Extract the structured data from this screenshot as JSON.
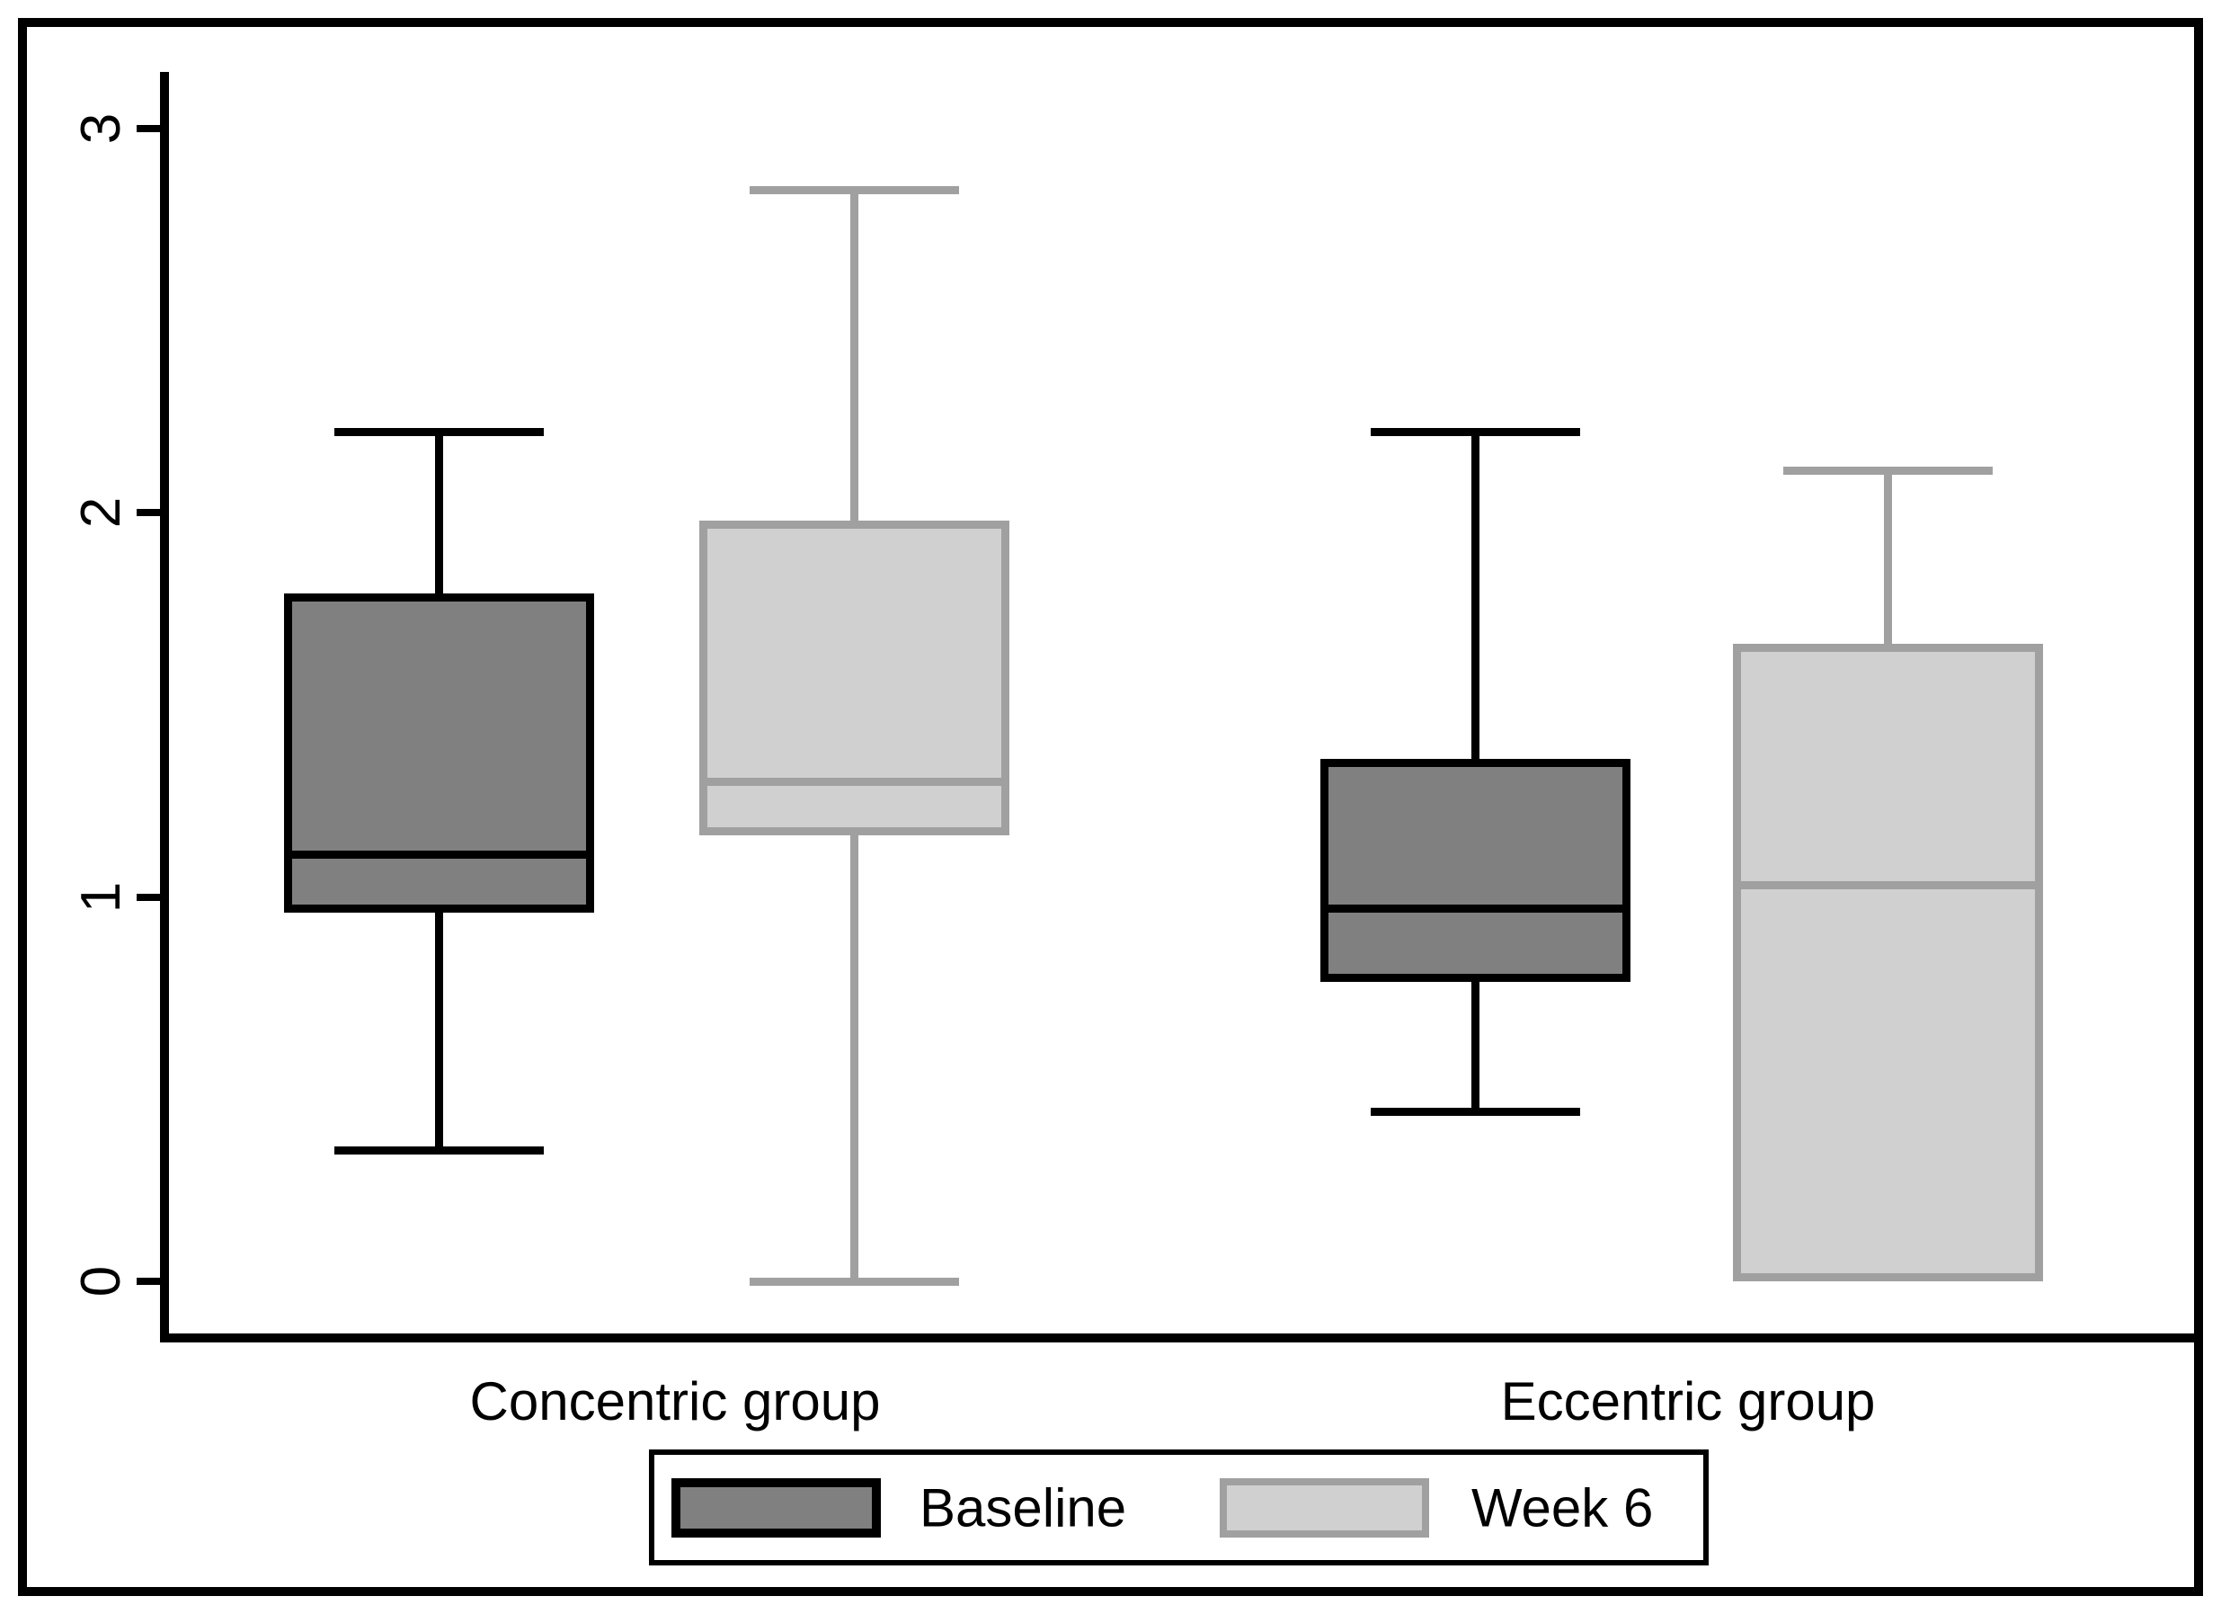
{
  "figure": {
    "background": "#ffffff",
    "outer_border_color": "#000000"
  },
  "chart_data": {
    "type": "box",
    "orientation": "vertical",
    "title": "",
    "xlabel": "",
    "ylabel": "",
    "grid": false,
    "y_axis": {
      "ticks": [
        0,
        1,
        2,
        3
      ],
      "range": [
        -0.15,
        3.15
      ]
    },
    "categories": [
      "Concentric group",
      "Eccentric group"
    ],
    "series": [
      {
        "name": "Baseline",
        "fill": "#808080",
        "stroke": "#000000",
        "boxes": [
          {
            "category": "Concentric group",
            "whisker_low": 0.34,
            "q1": 0.96,
            "median": 1.11,
            "q3": 1.79,
            "whisker_high": 2.21
          },
          {
            "category": "Eccentric group",
            "whisker_low": 0.44,
            "q1": 0.78,
            "median": 0.97,
            "q3": 1.36,
            "whisker_high": 2.21
          }
        ]
      },
      {
        "name": "Week 6",
        "fill": "#d0d0d0",
        "stroke": "#a0a0a0",
        "boxes": [
          {
            "category": "Concentric group",
            "whisker_low": 0.0,
            "q1": 1.16,
            "median": 1.3,
            "q3": 1.98,
            "whisker_high": 2.84
          },
          {
            "category": "Eccentric group",
            "whisker_low": 0.0,
            "q1": 0.0,
            "median": 1.03,
            "q3": 1.66,
            "whisker_high": 2.11
          }
        ]
      }
    ],
    "legend": {
      "position": "bottom-center",
      "items": [
        "Baseline",
        "Week 6"
      ]
    }
  }
}
